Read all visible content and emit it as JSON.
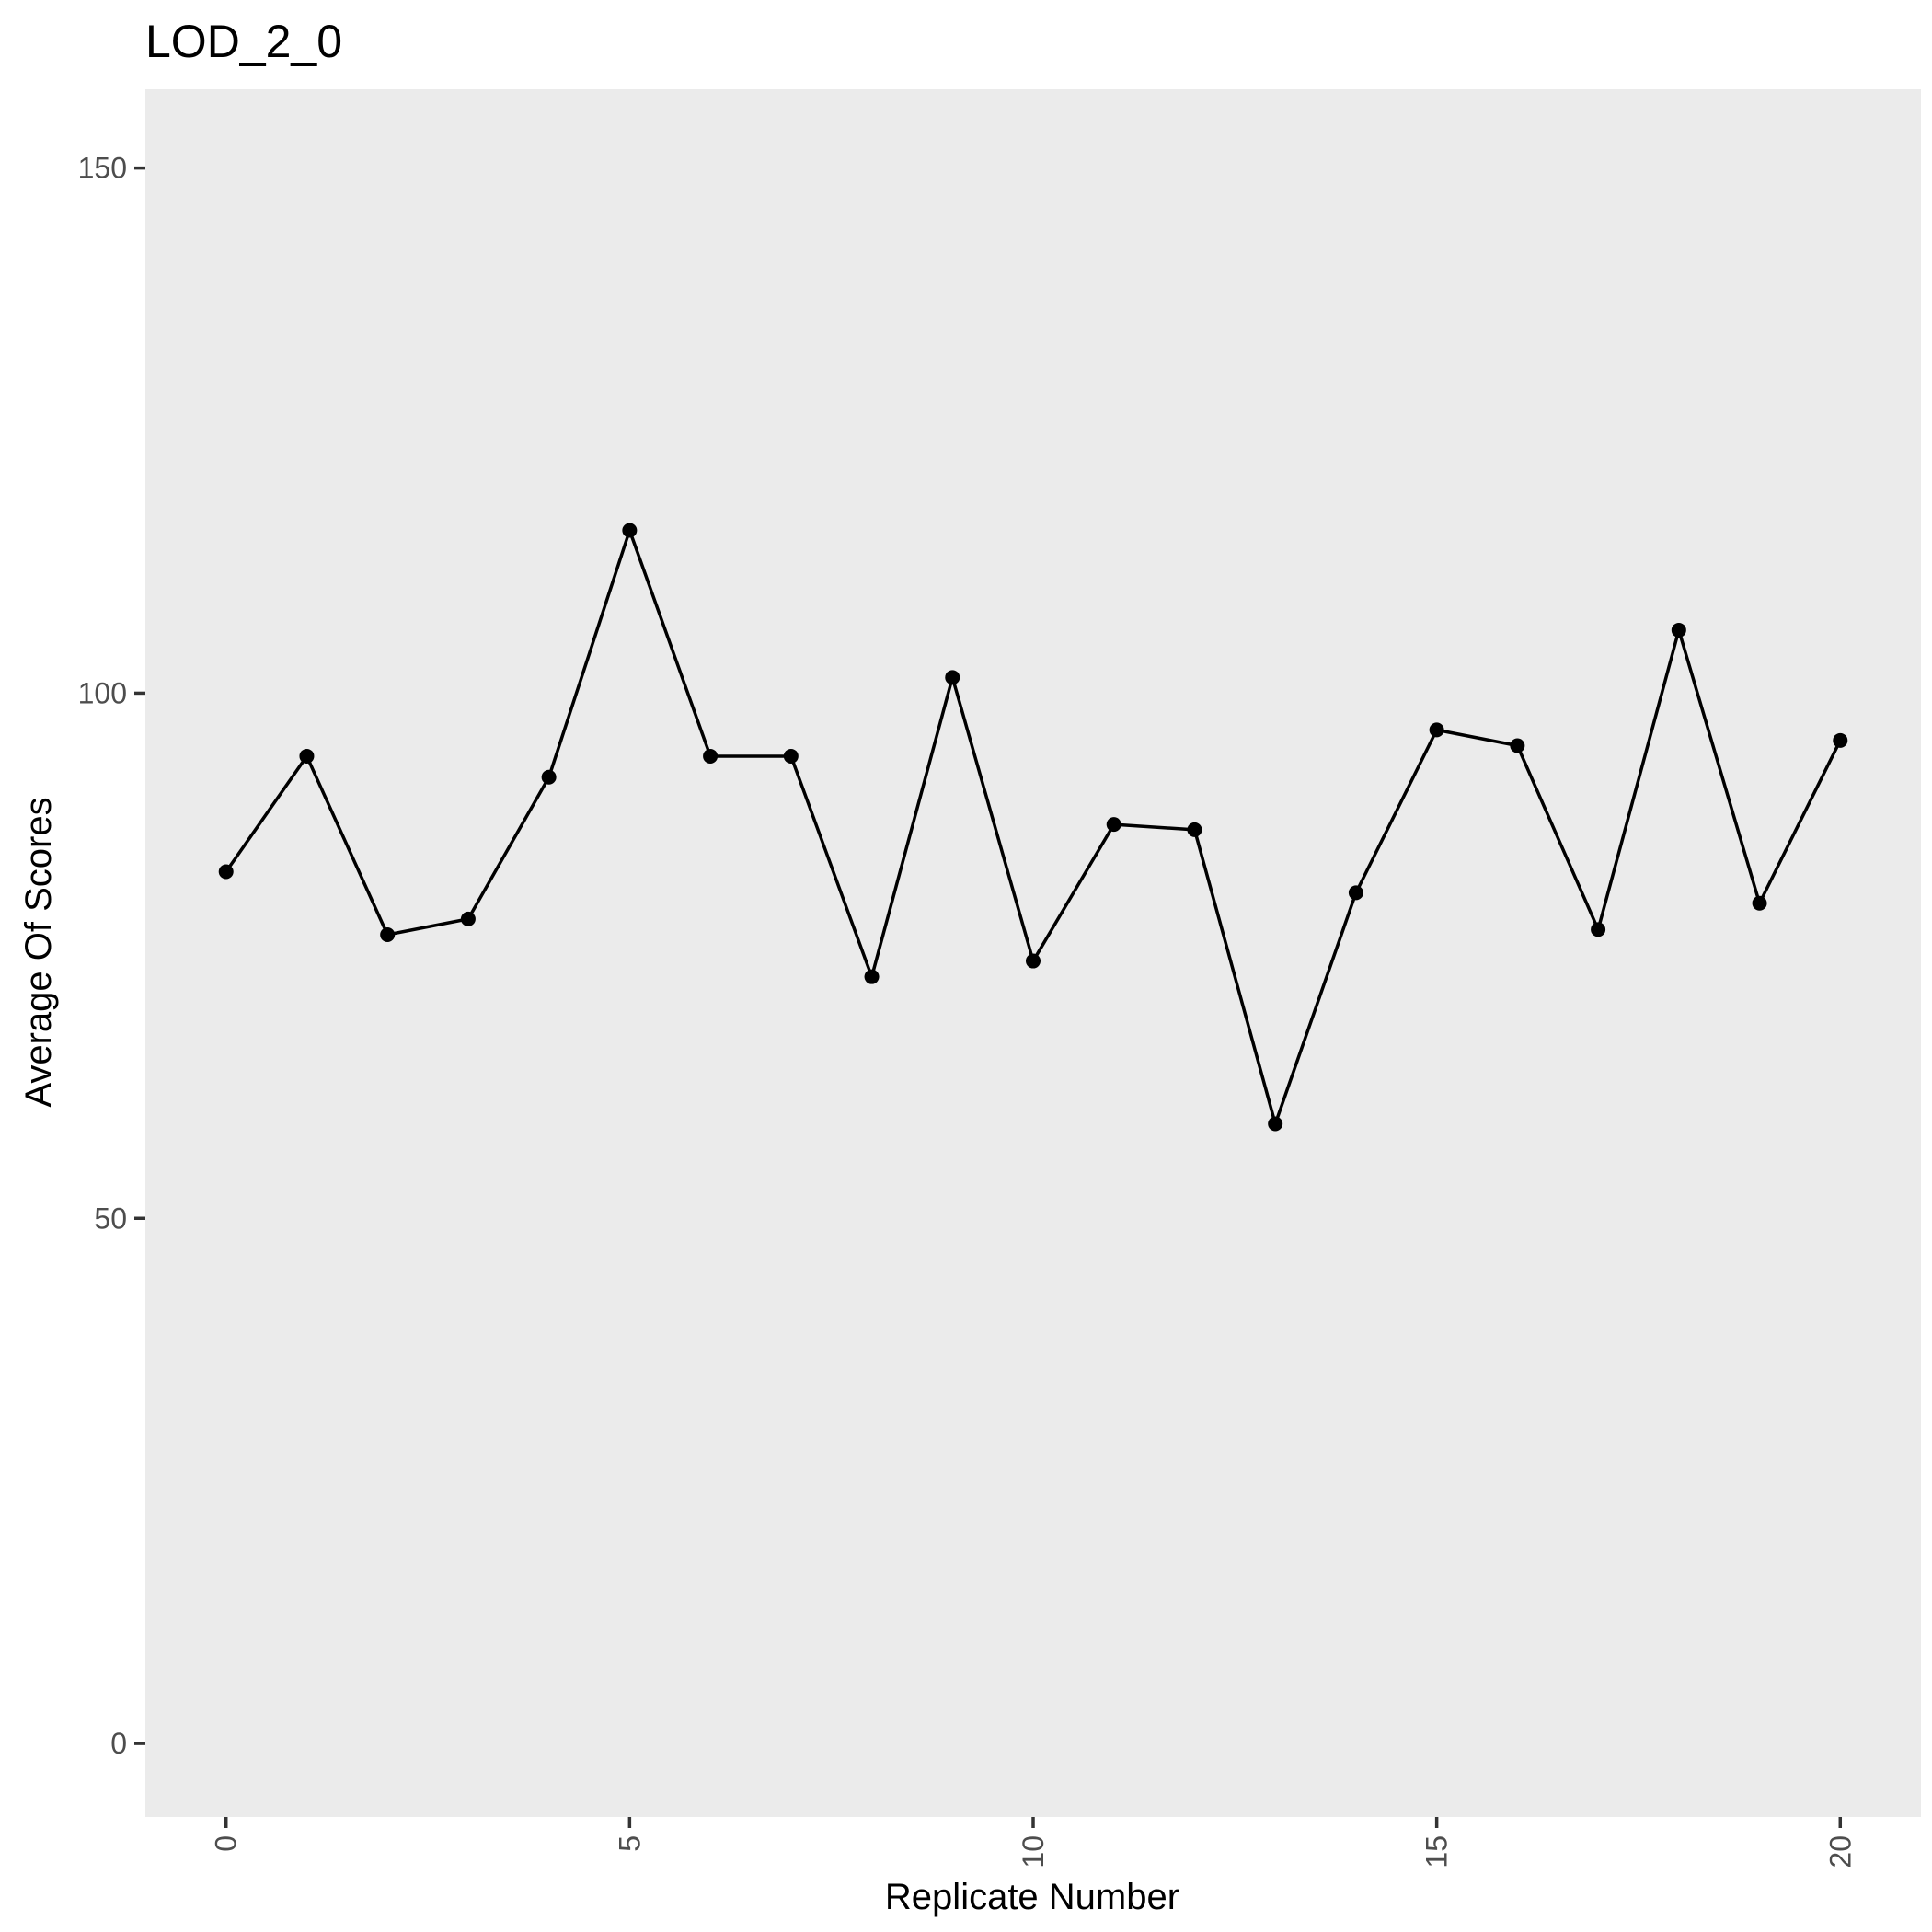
{
  "chart_data": {
    "type": "line",
    "title": "LOD_2_0",
    "xlabel": "Replicate Number",
    "ylabel": "Average Of Scores",
    "x_ticks": [
      0,
      5,
      10,
      15,
      20
    ],
    "y_ticks": [
      0,
      50,
      100,
      150
    ],
    "xlim": [
      -1,
      21
    ],
    "ylim": [
      -7,
      157.5
    ],
    "grid": false,
    "panel_background": "#ebebeb",
    "series": [
      {
        "color": "#000000",
        "x": [
          0,
          1,
          2,
          3,
          4,
          5,
          6,
          7,
          8,
          9,
          10,
          11,
          12,
          13,
          14,
          15,
          16,
          17,
          18,
          19,
          20
        ],
        "y": [
          83,
          94,
          77,
          78.5,
          92,
          115.5,
          94,
          94,
          73,
          101.5,
          74.5,
          87.5,
          87,
          59,
          81,
          96.5,
          95,
          77.5,
          106,
          80,
          95.5
        ]
      }
    ]
  }
}
